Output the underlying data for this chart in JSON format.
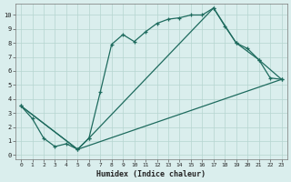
{
  "xlabel": "Humidex (Indice chaleur)",
  "background_color": "#daeeed",
  "grid_color": "#b5d5d0",
  "line_color": "#1e6b5e",
  "xlim": [
    -0.5,
    23.5
  ],
  "ylim": [
    -0.3,
    10.8
  ],
  "xticks": [
    0,
    1,
    2,
    3,
    4,
    5,
    6,
    7,
    8,
    9,
    10,
    11,
    12,
    13,
    14,
    15,
    16,
    17,
    18,
    19,
    20,
    21,
    22,
    23
  ],
  "yticks": [
    0,
    1,
    2,
    3,
    4,
    5,
    6,
    7,
    8,
    9,
    10
  ],
  "line1_x": [
    0,
    1,
    2,
    3,
    4,
    5,
    6,
    7,
    8,
    9,
    10,
    11,
    12,
    13,
    14,
    15,
    16,
    17,
    18,
    19,
    20,
    21,
    22,
    23
  ],
  "line1_y": [
    3.5,
    2.6,
    1.2,
    0.6,
    0.8,
    0.4,
    1.2,
    4.5,
    7.9,
    8.6,
    8.1,
    8.8,
    9.4,
    9.7,
    9.8,
    10.0,
    10.0,
    10.5,
    9.2,
    8.0,
    7.6,
    6.8,
    5.5,
    5.4
  ],
  "line2_x": [
    0,
    5,
    6,
    17,
    19,
    21,
    23
  ],
  "line2_y": [
    3.5,
    0.4,
    1.2,
    10.5,
    8.0,
    6.8,
    5.4
  ],
  "line3_x": [
    0,
    5,
    23
  ],
  "line3_y": [
    3.5,
    0.4,
    5.4
  ]
}
